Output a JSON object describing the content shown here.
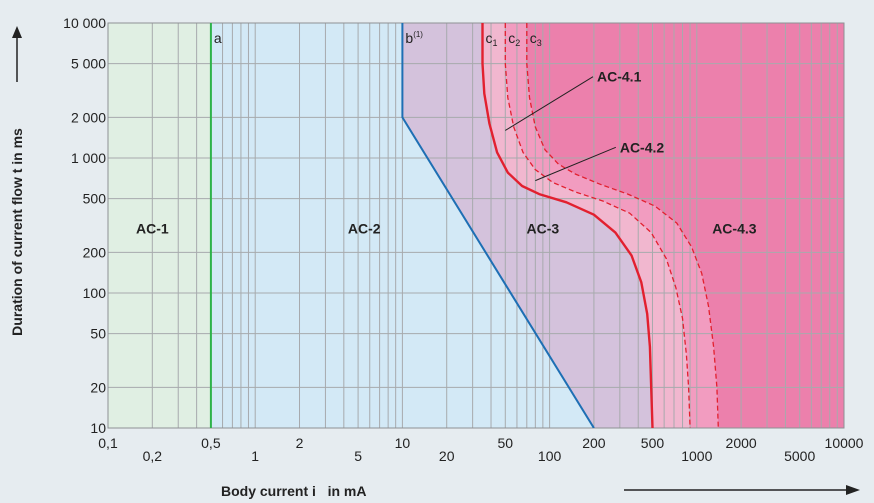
{
  "chart_data": {
    "type": "area",
    "xscale": "log",
    "yscale": "log",
    "xlim": [
      0.1,
      10000
    ],
    "ylim": [
      10,
      10000
    ],
    "grid": true,
    "ylabel": "Duration of current flow t in ms",
    "xlabel": "Body current i   in mA",
    "x_ticks": [
      {
        "value": 0.1,
        "label": "0,1",
        "row": 1
      },
      {
        "value": 0.2,
        "label": "0,2",
        "row": 2
      },
      {
        "value": 0.5,
        "label": "0,5",
        "row": 1
      },
      {
        "value": 1,
        "label": "1",
        "row": 2
      },
      {
        "value": 2,
        "label": "2",
        "row": 1
      },
      {
        "value": 5,
        "label": "5",
        "row": 2
      },
      {
        "value": 10,
        "label": "10",
        "row": 1
      },
      {
        "value": 20,
        "label": "20",
        "row": 2
      },
      {
        "value": 50,
        "label": "50",
        "row": 1
      },
      {
        "value": 100,
        "label": "100",
        "row": 2
      },
      {
        "value": 200,
        "label": "200",
        "row": 1
      },
      {
        "value": 500,
        "label": "500",
        "row": 1
      },
      {
        "value": 1000,
        "label": "1000",
        "row": 2
      },
      {
        "value": 2000,
        "label": "2000",
        "row": 1
      },
      {
        "value": 5000,
        "label": "5000",
        "row": 2
      },
      {
        "value": 10000,
        "label": "10000",
        "row": 1
      }
    ],
    "y_ticks": [
      {
        "value": 10,
        "label": "10"
      },
      {
        "value": 20,
        "label": "20"
      },
      {
        "value": 50,
        "label": "50"
      },
      {
        "value": 100,
        "label": "100"
      },
      {
        "value": 200,
        "label": "200"
      },
      {
        "value": 500,
        "label": "500"
      },
      {
        "value": 1000,
        "label": "1 000"
      },
      {
        "value": 2000,
        "label": "2 000"
      },
      {
        "value": 5000,
        "label": "5 000"
      },
      {
        "value": 10000,
        "label": "10 000"
      }
    ],
    "x_gridlines": [
      0.1,
      0.2,
      0.3,
      0.4,
      0.5,
      0.6,
      0.7,
      0.8,
      0.9,
      1,
      2,
      3,
      4,
      5,
      6,
      7,
      8,
      9,
      10,
      20,
      30,
      40,
      50,
      60,
      70,
      80,
      90,
      100,
      200,
      300,
      400,
      500,
      600,
      700,
      800,
      900,
      1000,
      2000,
      3000,
      4000,
      5000,
      6000,
      7000,
      8000,
      9000,
      10000
    ],
    "y_gridlines": [
      10,
      20,
      50,
      100,
      200,
      500,
      1000,
      2000,
      5000,
      10000
    ],
    "zones": [
      {
        "name": "AC-1",
        "color": "#e0efe3",
        "label_at": [
          0.2,
          300
        ]
      },
      {
        "name": "AC-2",
        "color": "#d3e9f6",
        "label_at": [
          5.5,
          300
        ]
      },
      {
        "name": "AC-3",
        "color": "#d4c2dc",
        "label_at": [
          90,
          300
        ]
      },
      {
        "name": "AC-4.1",
        "color": "#f1b7cf",
        "label_at": [
          210,
          4000
        ],
        "leader_to": [
          50,
          1600
        ]
      },
      {
        "name": "AC-4.2",
        "color": "#f29cc0",
        "label_at": [
          300,
          1200
        ],
        "leader_to": [
          80,
          680
        ]
      },
      {
        "name": "AC-4.3",
        "color": "#ec80ac",
        "label_at": [
          1800,
          300
        ]
      }
    ],
    "curves": [
      {
        "id": "a",
        "label": "a",
        "color": "#2db34a",
        "style": "solid",
        "points": [
          [
            0.5,
            10
          ],
          [
            0.5,
            10000
          ]
        ]
      },
      {
        "id": "b",
        "label": "b",
        "sup": "(1)",
        "color": "#1e6fb4",
        "style": "solid",
        "points": [
          [
            10,
            10000
          ],
          [
            10,
            2000
          ],
          [
            200,
            10
          ]
        ]
      },
      {
        "id": "c1",
        "label": "c",
        "sub": "1",
        "color": "#e2202f",
        "style": "solid",
        "points": [
          [
            35,
            10000
          ],
          [
            35,
            5000
          ],
          [
            36,
            3000
          ],
          [
            39,
            1800
          ],
          [
            44,
            1100
          ],
          [
            52,
            780
          ],
          [
            65,
            620
          ],
          [
            85,
            540
          ],
          [
            130,
            470
          ],
          [
            200,
            380
          ],
          [
            280,
            280
          ],
          [
            360,
            190
          ],
          [
            420,
            120
          ],
          [
            460,
            70
          ],
          [
            480,
            40
          ],
          [
            490,
            20
          ],
          [
            500,
            10
          ]
        ]
      },
      {
        "id": "c2",
        "label": "c",
        "sub": "2",
        "color": "#e2202f",
        "style": "dashed",
        "points": [
          [
            50,
            10000
          ],
          [
            50,
            5000
          ],
          [
            52,
            2800
          ],
          [
            57,
            1700
          ],
          [
            66,
            1100
          ],
          [
            80,
            820
          ],
          [
            105,
            660
          ],
          [
            150,
            560
          ],
          [
            230,
            480
          ],
          [
            350,
            390
          ],
          [
            490,
            280
          ],
          [
            620,
            180
          ],
          [
            720,
            110
          ],
          [
            800,
            65
          ],
          [
            850,
            35
          ],
          [
            880,
            20
          ],
          [
            900,
            10
          ]
        ]
      },
      {
        "id": "c3",
        "label": "c",
        "sub": "3",
        "color": "#e2202f",
        "style": "dashed",
        "points": [
          [
            70,
            10000
          ],
          [
            70,
            5000
          ],
          [
            73,
            2800
          ],
          [
            80,
            1700
          ],
          [
            93,
            1150
          ],
          [
            115,
            900
          ],
          [
            150,
            760
          ],
          [
            220,
            640
          ],
          [
            340,
            540
          ],
          [
            520,
            440
          ],
          [
            730,
            330
          ],
          [
            920,
            220
          ],
          [
            1080,
            140
          ],
          [
            1200,
            80
          ],
          [
            1300,
            40
          ],
          [
            1370,
            20
          ],
          [
            1400,
            10
          ]
        ]
      }
    ]
  }
}
